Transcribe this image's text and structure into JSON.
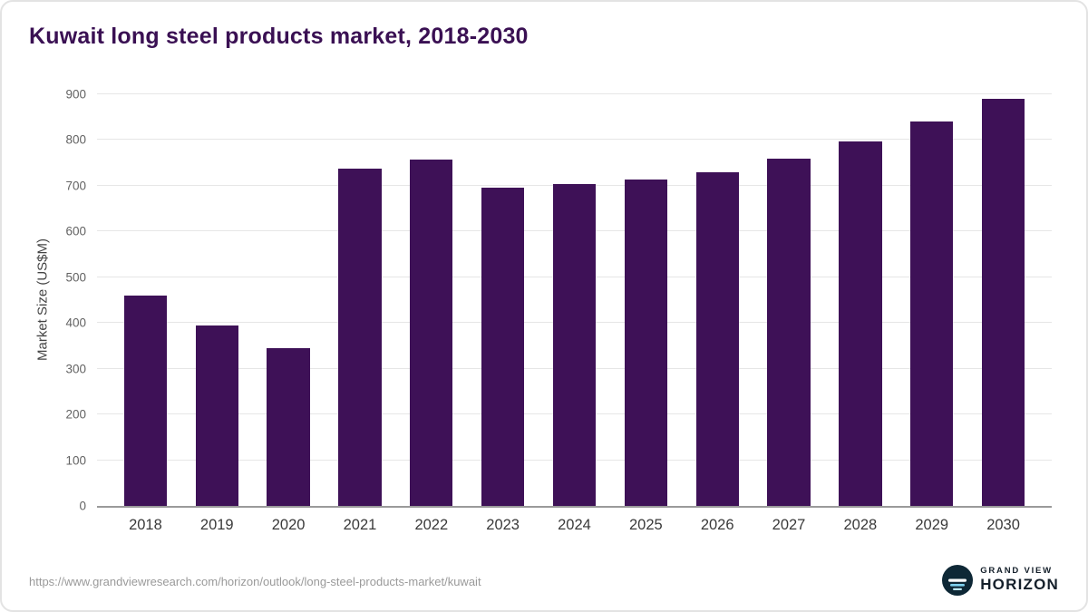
{
  "header": {
    "title": "Kuwait long steel products market, 2018-2030"
  },
  "chart_data": {
    "type": "bar",
    "title": "Kuwait long steel products market, 2018-2030",
    "categories": [
      "2018",
      "2019",
      "2020",
      "2021",
      "2022",
      "2023",
      "2024",
      "2025",
      "2026",
      "2027",
      "2028",
      "2029",
      "2030"
    ],
    "values": [
      460,
      395,
      345,
      737,
      757,
      696,
      704,
      713,
      730,
      760,
      796,
      840,
      890
    ],
    "xlabel": "",
    "ylabel": "Market Size (US$M)",
    "ylim": [
      0,
      900
    ],
    "ytick_step": 100,
    "grid": "horizontal",
    "legend": "none"
  },
  "colors": {
    "bar": "#3e1157",
    "title": "#3a1053"
  },
  "footer": {
    "source_url": "https://www.grandviewresearch.com/horizon/outlook/long-steel-products-market/kuwait",
    "logo": {
      "icon": "horizon-globe-icon",
      "line1": "GRAND VIEW",
      "line2": "HORIZON"
    }
  }
}
